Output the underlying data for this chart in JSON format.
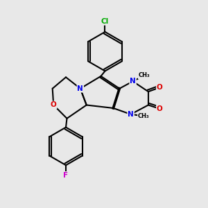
{
  "bg": "#e8e8e8",
  "bond_color": "#000000",
  "bond_lw": 1.5,
  "atom_colors": {
    "N": "#0000ee",
    "O": "#dd0000",
    "F": "#cc00cc",
    "Cl": "#00aa00",
    "C": "#000000"
  },
  "xlim": [
    0,
    10
  ],
  "ylim": [
    0,
    10
  ],
  "figsize": [
    3.0,
    3.0
  ],
  "dpi": 100
}
